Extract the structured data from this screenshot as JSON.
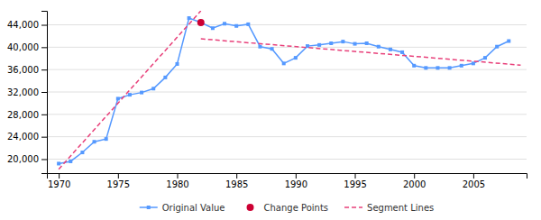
{
  "chart_data": {
    "type": "line",
    "x": [
      1970,
      1971,
      1972,
      1973,
      1974,
      1975,
      1976,
      1977,
      1978,
      1979,
      1980,
      1981,
      1982,
      1983,
      1984,
      1985,
      1986,
      1987,
      1988,
      1989,
      1990,
      1991,
      1992,
      1993,
      1994,
      1995,
      1996,
      1997,
      1998,
      1999,
      2000,
      2001,
      2002,
      2003,
      2004,
      2005,
      2006,
      2007,
      2008
    ],
    "series": [
      {
        "name": "Original Value",
        "type": "line",
        "color": "#5599ff",
        "marker": "square",
        "line_style": "solid",
        "values": [
          19200,
          19600,
          21200,
          23100,
          23600,
          30800,
          31500,
          31900,
          32600,
          34600,
          37000,
          45200,
          44400,
          43400,
          44200,
          43800,
          44100,
          40100,
          39700,
          37100,
          38100,
          40200,
          40400,
          40700,
          41000,
          40600,
          40700,
          40100,
          39600,
          39100,
          36700,
          36300,
          36300,
          36300,
          36700,
          37100,
          38100,
          40100,
          41100
        ]
      },
      {
        "name": "Change Points",
        "type": "scatter",
        "color": "#cc0033",
        "marker": "circle",
        "x": [
          1982
        ],
        "values": [
          44400
        ]
      },
      {
        "type": "line",
        "color": "#e8407a",
        "line_style": "dashed",
        "x": [
          1970,
          1982
        ],
        "values": [
          18200,
          46500
        ]
      },
      {
        "name": "Segment Lines",
        "type": "line",
        "color": "#e8407a",
        "line_style": "dashed",
        "x": [
          1982,
          2009
        ],
        "values": [
          41500,
          36800
        ]
      }
    ],
    "xlim": [
      1969.0,
      2009.5
    ],
    "ylim": [
      17500,
      46500
    ],
    "xticks": [
      1970,
      1975,
      1980,
      1985,
      1990,
      1995,
      2000,
      2005
    ],
    "yticks": [
      {
        "value": 20000,
        "label": "20,000"
      },
      {
        "value": 24000,
        "label": "24,000"
      },
      {
        "value": 28000,
        "label": "28,000"
      },
      {
        "value": 32000,
        "label": "32,000"
      },
      {
        "value": 36000,
        "label": "36,000"
      },
      {
        "value": 40000,
        "label": "40,000"
      },
      {
        "value": 44000,
        "label": "44,000"
      }
    ],
    "grid": true,
    "legend": "bottom"
  }
}
